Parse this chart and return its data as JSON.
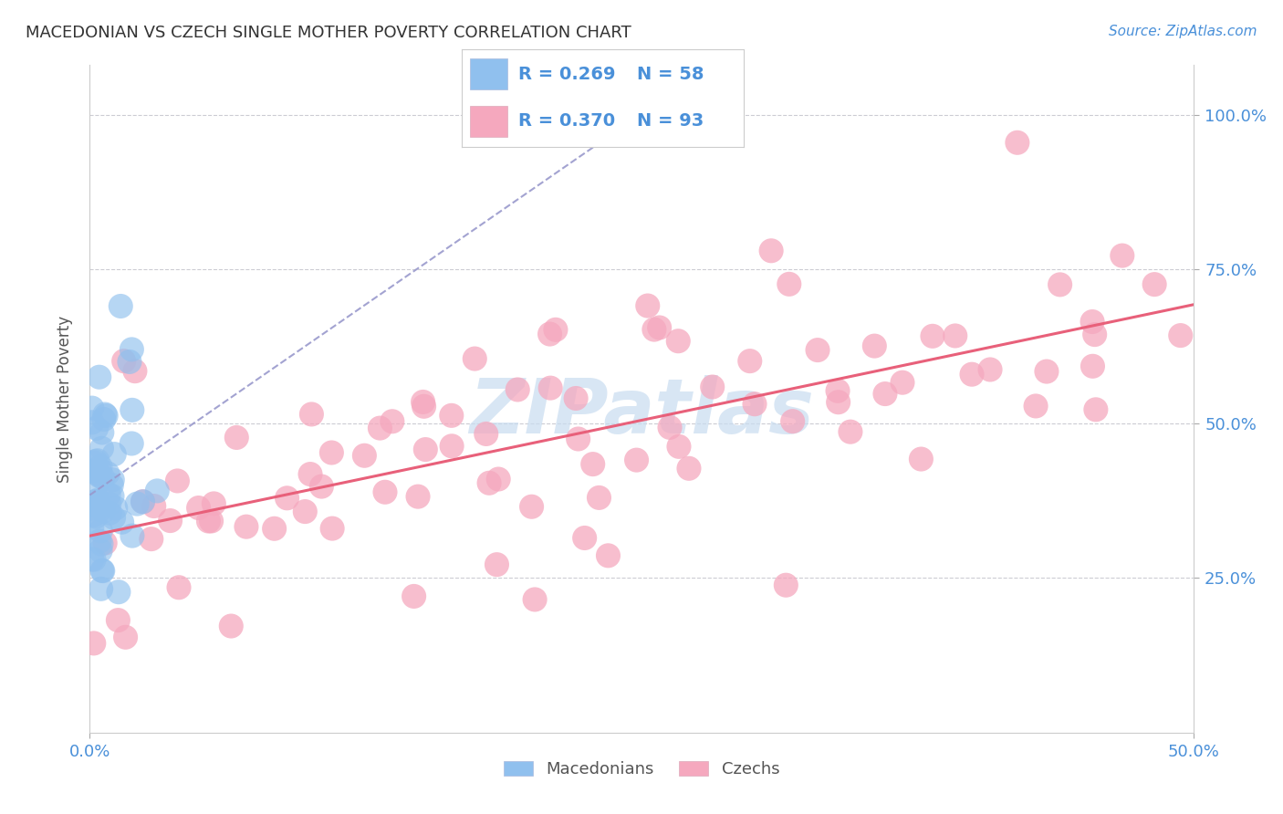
{
  "title": "MACEDONIAN VS CZECH SINGLE MOTHER POVERTY CORRELATION CHART",
  "source_text": "Source: ZipAtlas.com",
  "ylabel": "Single Mother Poverty",
  "xlim": [
    0.0,
    0.5
  ],
  "ylim": [
    0.0,
    1.08
  ],
  "mac_color": "#90C0EE",
  "cze_color": "#F5A8BE",
  "mac_line_color": "#5577CC",
  "cze_line_color": "#E8607A",
  "dashed_line_color": "#9999CC",
  "axis_label_color": "#4A90D9",
  "watermark_color": "#C8DCF0",
  "title_fontsize": 13,
  "source_fontsize": 11,
  "tick_fontsize": 13,
  "ylabel_fontsize": 12,
  "legend_fontsize": 14,
  "mac_r": "0.269",
  "mac_n": "58",
  "cze_r": "0.370",
  "cze_n": "93"
}
